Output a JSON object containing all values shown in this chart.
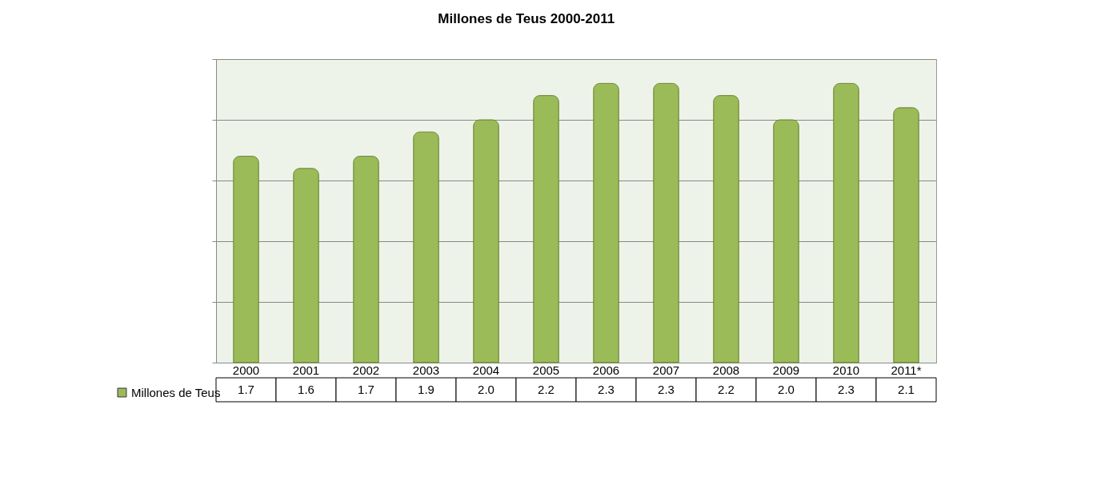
{
  "chart_data": {
    "type": "bar",
    "title": "Millones de Teus 2000-2011",
    "categories": [
      "2000",
      "2001",
      "2002",
      "2003",
      "2004",
      "2005",
      "2006",
      "2007",
      "2008",
      "2009",
      "2010",
      "2011*"
    ],
    "series": [
      {
        "name": "Millones de Teus",
        "color": "#9bbb59",
        "values": [
          1.7,
          1.6,
          1.7,
          1.9,
          2.0,
          2.2,
          2.3,
          2.3,
          2.2,
          2.0,
          2.3,
          2.1
        ],
        "value_labels": [
          "1.7",
          "1.6",
          "1.7",
          "1.9",
          "2.0",
          "2.2",
          "2.3",
          "2.3",
          "2.2",
          "2.0",
          "2.3",
          "2.1"
        ]
      }
    ],
    "ylim": [
      0,
      2.5
    ],
    "yticks": [
      {
        "value": 0,
        "label": null
      },
      {
        "value": 0.5,
        "label": null
      },
      {
        "value": 1,
        "label": null
      },
      {
        "value": 1.5,
        "label": null
      },
      {
        "value": 2,
        "label": null
      },
      {
        "value": 2.5,
        "label": null
      }
    ],
    "grid": "y",
    "tick_labels": "x",
    "legend": "bottom left"
  }
}
